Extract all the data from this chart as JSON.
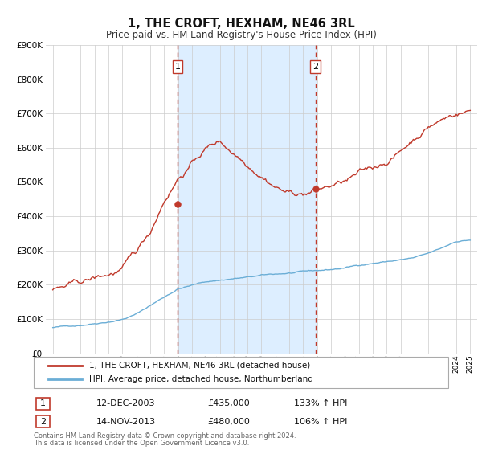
{
  "title": "1, THE CROFT, HEXHAM, NE46 3RL",
  "subtitle": "Price paid vs. HM Land Registry's House Price Index (HPI)",
  "legend_line1": "1, THE CROFT, HEXHAM, NE46 3RL (detached house)",
  "legend_line2": "HPI: Average price, detached house, Northumberland",
  "sale1_label": "1",
  "sale1_date": "12-DEC-2003",
  "sale1_price": "£435,000",
  "sale1_hpi": "133% ↑ HPI",
  "sale1_year": 2003.96,
  "sale1_value": 435000,
  "sale2_label": "2",
  "sale2_date": "14-NOV-2013",
  "sale2_price": "£480,000",
  "sale2_hpi": "106% ↑ HPI",
  "sale2_year": 2013.87,
  "sale2_value": 480000,
  "footnote1": "Contains HM Land Registry data © Crown copyright and database right 2024.",
  "footnote2": "This data is licensed under the Open Government Licence v3.0.",
  "hpi_color": "#6baed6",
  "price_color": "#c0392b",
  "shade_color": "#ddeeff",
  "ylim_max": 900000,
  "ylim_min": 0,
  "xlim_min": 1994.5,
  "xlim_max": 2025.5,
  "background_color": "#ffffff",
  "grid_color": "#cccccc",
  "hpi_seed_vals": [
    75000,
    78000,
    83000,
    90000,
    97000,
    105000,
    120000,
    145000,
    170000,
    195000,
    205000,
    215000,
    220000,
    225000,
    228000,
    232000,
    235000,
    238000,
    240000,
    242000,
    245000,
    250000,
    258000,
    265000,
    270000,
    275000,
    280000,
    290000,
    305000,
    325000,
    330000
  ],
  "price_seed_vals": [
    185000,
    190000,
    195000,
    205000,
    215000,
    230000,
    270000,
    330000,
    430000,
    500000,
    545000,
    590000,
    610000,
    580000,
    555000,
    535000,
    510000,
    490000,
    490000,
    500000,
    510000,
    520000,
    535000,
    545000,
    570000,
    600000,
    640000,
    680000,
    700000,
    720000,
    730000
  ]
}
